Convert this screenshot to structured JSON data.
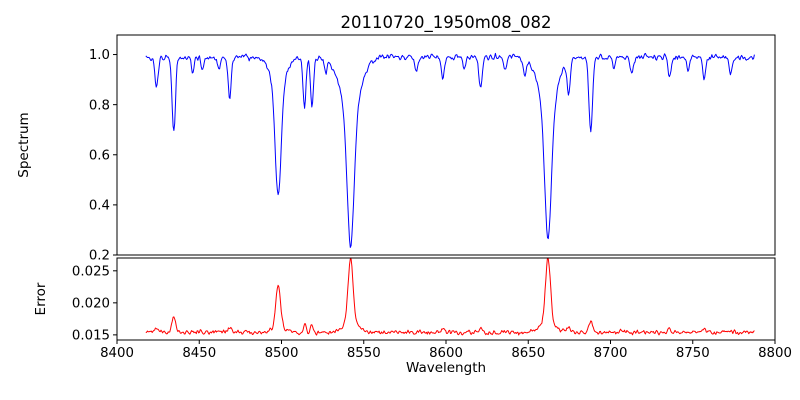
{
  "chart_data": {
    "type": "line",
    "title": "20110720_1950m08_082",
    "xlabel": "Wavelength",
    "x_axis": {
      "min": 8400,
      "max": 8800,
      "ticks": [
        8400,
        8450,
        8500,
        8550,
        8600,
        8650,
        8700,
        8750,
        8800
      ]
    },
    "x_domain": [
      8417.5,
      8787.5
    ],
    "samples": 760,
    "noise_seed": 5,
    "grid": false,
    "legend": "none",
    "panels": [
      {
        "name": "spectrum",
        "ylabel": "Spectrum",
        "color": "#0000ff",
        "ylim": [
          0.2,
          1.078
        ],
        "yticks": [
          {
            "v": 0.2,
            "label": "0.2"
          },
          {
            "v": 0.4,
            "label": "0.4"
          },
          {
            "v": 0.6,
            "label": "0.6"
          },
          {
            "v": 0.8,
            "label": "0.8"
          },
          {
            "v": 1.0,
            "label": "1.0"
          }
        ],
        "continuum": 0.99,
        "noise": 0.016,
        "absorption_lines": [
          {
            "x": 8424,
            "d": 0.12,
            "w": 1.0
          },
          {
            "x": 8434.5,
            "d": 0.3,
            "w": 1.0
          },
          {
            "x": 8446,
            "d": 0.06,
            "w": 0.8
          },
          {
            "x": 8452,
            "d": 0.05,
            "w": 0.8
          },
          {
            "x": 8462,
            "d": 0.05,
            "w": 0.8
          },
          {
            "x": 8468.5,
            "d": 0.16,
            "w": 1.0
          },
          {
            "x": 8498,
            "d": 0.43,
            "w": 1.7
          },
          {
            "x": 8498,
            "d": 0.13,
            "w": 4.5
          },
          {
            "x": 8514,
            "d": 0.2,
            "w": 0.9
          },
          {
            "x": 8518.5,
            "d": 0.2,
            "w": 0.9
          },
          {
            "x": 8527,
            "d": 0.05,
            "w": 0.8
          },
          {
            "x": 8542,
            "d": 0.53,
            "w": 2.1
          },
          {
            "x": 8542,
            "d": 0.22,
            "w": 6.0
          },
          {
            "x": 8582,
            "d": 0.07,
            "w": 0.9
          },
          {
            "x": 8598,
            "d": 0.08,
            "w": 0.9
          },
          {
            "x": 8611,
            "d": 0.05,
            "w": 0.8
          },
          {
            "x": 8621,
            "d": 0.12,
            "w": 1.0
          },
          {
            "x": 8636,
            "d": 0.05,
            "w": 0.8
          },
          {
            "x": 8648,
            "d": 0.06,
            "w": 0.9
          },
          {
            "x": 8662,
            "d": 0.51,
            "w": 2.0
          },
          {
            "x": 8662,
            "d": 0.21,
            "w": 5.5
          },
          {
            "x": 8674.5,
            "d": 0.14,
            "w": 0.9
          },
          {
            "x": 8688,
            "d": 0.29,
            "w": 1.1
          },
          {
            "x": 8702,
            "d": 0.05,
            "w": 0.8
          },
          {
            "x": 8713,
            "d": 0.07,
            "w": 0.9
          },
          {
            "x": 8736,
            "d": 0.08,
            "w": 0.9
          },
          {
            "x": 8747,
            "d": 0.06,
            "w": 0.8
          },
          {
            "x": 8757,
            "d": 0.09,
            "w": 0.9
          },
          {
            "x": 8773,
            "d": 0.07,
            "w": 0.9
          }
        ]
      },
      {
        "name": "error",
        "ylabel": "Error",
        "color": "#ff0000",
        "ylim": [
          0.0142,
          0.027
        ],
        "yticks": [
          {
            "v": 0.015,
            "label": "0.015"
          },
          {
            "v": 0.02,
            "label": "0.020"
          },
          {
            "v": 0.025,
            "label": "0.025"
          }
        ],
        "baseline": 0.0154,
        "noise": 0.0005,
        "peaks": [
          {
            "x": 8424,
            "amp": 0.0007,
            "w": 1.0
          },
          {
            "x": 8434.5,
            "amp": 0.0025,
            "w": 1.1
          },
          {
            "x": 8468.5,
            "amp": 0.001,
            "w": 1.0
          },
          {
            "x": 8498,
            "amp": 0.0068,
            "w": 1.4
          },
          {
            "x": 8498,
            "amp": 0.0008,
            "w": 4.0
          },
          {
            "x": 8514,
            "amp": 0.0011,
            "w": 0.9
          },
          {
            "x": 8518.5,
            "amp": 0.0011,
            "w": 0.9
          },
          {
            "x": 8542,
            "amp": 0.01,
            "w": 1.6
          },
          {
            "x": 8542,
            "amp": 0.0012,
            "w": 5.0
          },
          {
            "x": 8598,
            "amp": 0.0006,
            "w": 0.9
          },
          {
            "x": 8621,
            "amp": 0.0006,
            "w": 0.9
          },
          {
            "x": 8662,
            "amp": 0.0103,
            "w": 1.5
          },
          {
            "x": 8662,
            "amp": 0.0012,
            "w": 5.0
          },
          {
            "x": 8674.5,
            "amp": 0.0008,
            "w": 0.9
          },
          {
            "x": 8688,
            "amp": 0.0018,
            "w": 1.1
          },
          {
            "x": 8736,
            "amp": 0.0006,
            "w": 0.9
          },
          {
            "x": 8757,
            "amp": 0.0007,
            "w": 0.9
          }
        ]
      }
    ]
  }
}
